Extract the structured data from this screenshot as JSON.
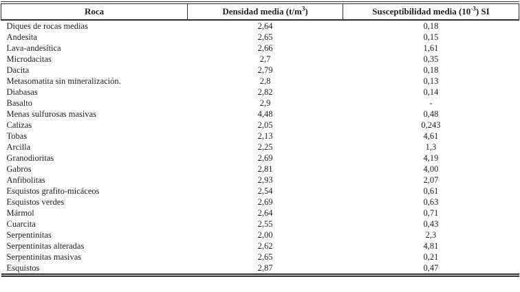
{
  "table": {
    "headers": {
      "col1": "Roca",
      "col2": {
        "pre": "Densidad media (t/m",
        "sup": "3",
        "post": ")"
      },
      "col3": {
        "pre": "Susceptibilidad media (10",
        "sup": "-3",
        "post": ") SI"
      }
    },
    "rows": [
      {
        "roca": "Diques de rocas medias",
        "densidad": "2,64",
        "susceptibilidad": "0,18"
      },
      {
        "roca": "Andesita",
        "densidad": "2,65",
        "susceptibilidad": "0,15"
      },
      {
        "roca": "Lava-andesítica",
        "densidad": "2,66",
        "susceptibilidad": "1,61"
      },
      {
        "roca": "Microdacitas",
        "densidad": "2,7",
        "susceptibilidad": "0,35"
      },
      {
        "roca": "Dacita",
        "densidad": "2,79",
        "susceptibilidad": "0,18"
      },
      {
        "roca": "Metasomatita sin mineralización.",
        "densidad": "2,8",
        "susceptibilidad": "0,13"
      },
      {
        "roca": "Diabasas",
        "densidad": "2,82",
        "susceptibilidad": "0,14"
      },
      {
        "roca": "Basalto",
        "densidad": "2,9",
        "susceptibilidad": "-"
      },
      {
        "roca": "Menas sulfurosas masivas",
        "densidad": "4,48",
        "susceptibilidad": "0,48"
      },
      {
        "roca": "Calizas",
        "densidad": "2,05",
        "susceptibilidad": "0,243"
      },
      {
        "roca": "Tobas",
        "densidad": "2,13",
        "susceptibilidad": "4,61"
      },
      {
        "roca": "Arcilla",
        "densidad": "2,25",
        "susceptibilidad": "1,3"
      },
      {
        "roca": "Granodioritas",
        "densidad": "2,69",
        "susceptibilidad": "4,19"
      },
      {
        "roca": "Gabros",
        "densidad": "2,81",
        "susceptibilidad": "4,00"
      },
      {
        "roca": "Anfibolitas",
        "densidad": "2,93",
        "susceptibilidad": "2,07"
      },
      {
        "roca": "Esquistos grafito-micáceos",
        "densidad": "2,54",
        "susceptibilidad": "0,61"
      },
      {
        "roca": "Esquistos verdes",
        "densidad": "2,69",
        "susceptibilidad": "0,63"
      },
      {
        "roca": "Mármol",
        "densidad": "2,64",
        "susceptibilidad": "0,71"
      },
      {
        "roca": "Cuarcita",
        "densidad": "2,55",
        "susceptibilidad": "0,43"
      },
      {
        "roca": "Serpentinitas",
        "densidad": "2,00",
        "susceptibilidad": "2,3"
      },
      {
        "roca": "Serpentinitas alteradas",
        "densidad": "2,62",
        "susceptibilidad": "4,81"
      },
      {
        "roca": "Serpentinitas masivas",
        "densidad": "2,65",
        "susceptibilidad": "0,21"
      },
      {
        "roca": "Esquistos",
        "densidad": "2,87",
        "susceptibilidad": "0,47"
      }
    ]
  }
}
